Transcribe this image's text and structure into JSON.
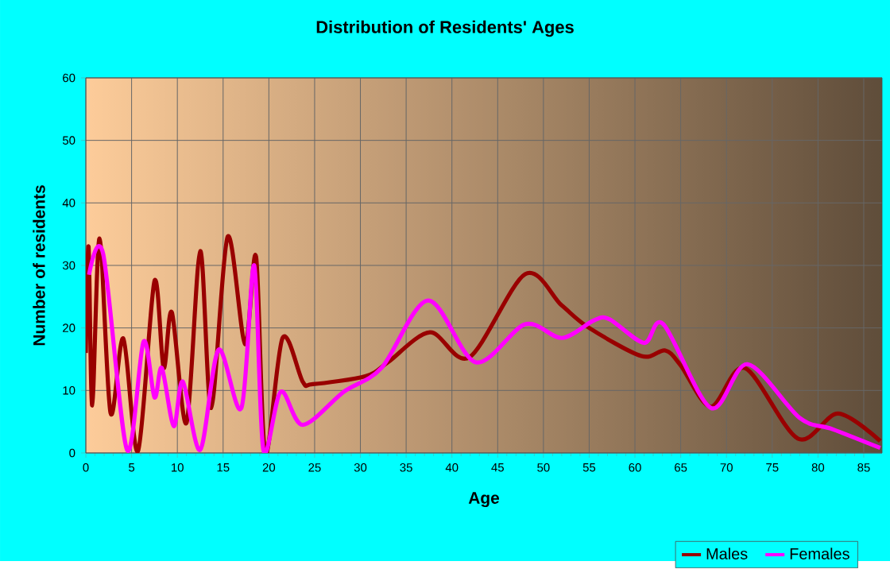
{
  "chart_data": {
    "type": "line",
    "title": "Distribution of Residents' Ages",
    "xlabel": "Age",
    "ylabel": "Number of residents",
    "xlim": [
      0,
      87
    ],
    "ylim": [
      0,
      60
    ],
    "xticks": [
      0,
      5,
      10,
      15,
      20,
      25,
      30,
      35,
      40,
      45,
      50,
      55,
      60,
      65,
      70,
      75,
      80,
      85
    ],
    "yticks": [
      0,
      10,
      20,
      30,
      40,
      50,
      60
    ],
    "grid": true,
    "legend": "bottom right",
    "marker": "none",
    "line_style": "solid",
    "series": [
      {
        "name": "Males",
        "color": "#990000",
        "x": [
          0,
          0.3,
          0.7,
          1.5,
          2.7,
          4.1,
          5.7,
          7.5,
          8.5,
          9.4,
          11,
          12.5,
          13.7,
          15.5,
          17.4,
          18.6,
          19.6,
          21.5,
          23.7,
          24.8,
          30.6,
          33,
          37.6,
          41.9,
          48,
          52,
          55,
          60.7,
          63.3,
          65,
          68.3,
          72,
          77.8,
          82.2,
          86.8
        ],
        "values": [
          16,
          33,
          7.6,
          34.3,
          6.4,
          18.3,
          0.3,
          27.5,
          13.6,
          22.5,
          4.8,
          32.3,
          7.2,
          34.6,
          17.4,
          31.4,
          0,
          18.4,
          11.4,
          11,
          12.3,
          14.5,
          19.3,
          15.3,
          28.6,
          23.6,
          20,
          15.5,
          16.4,
          14,
          7.4,
          13.6,
          2.3,
          6.3,
          1.9
        ]
      },
      {
        "name": "Females",
        "color": "#ff00ff",
        "x": [
          0.35,
          1.9,
          4.5,
          6.3,
          7.5,
          8.3,
          9.6,
          10.6,
          12.5,
          14.5,
          17,
          18.4,
          19.4,
          21.3,
          23.7,
          28.2,
          32.3,
          37.4,
          42.6,
          48,
          52,
          55.5,
          57.2,
          61,
          63.1,
          68.3,
          72.3,
          78,
          81.6,
          86.8
        ],
        "values": [
          28.5,
          31.8,
          0.5,
          17.8,
          8.9,
          13.6,
          4.3,
          11.4,
          0.5,
          16.5,
          7.2,
          30,
          0.5,
          9.8,
          4.5,
          9.8,
          13.6,
          24.4,
          14.5,
          20.6,
          18.4,
          21.2,
          21.4,
          17.6,
          20.6,
          7.2,
          14.2,
          5.6,
          3.8,
          0.8
        ]
      }
    ]
  }
}
